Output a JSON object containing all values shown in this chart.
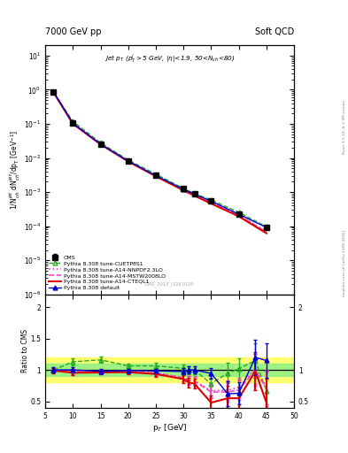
{
  "title_left": "7000 GeV pp",
  "title_right": "Soft QCD",
  "ylabel_main": "1/N$_{ch}^{jet}$ dN$_{ch}^{jet}$/dp$_T$ [GeV$^{-1}$]",
  "ylabel_ratio": "Ratio to CMS",
  "xlabel": "p$_T$ [GeV]",
  "inner_title": "Jet p$_T$ (p$_T^j$$>$5 GeV, |$\\eta$|<1.9, 50<N$_{ch}$<80)",
  "cms_label": "CMS_2013_I1261026",
  "rivet_label": "Rivet 3.1.10, ≥ 2.9M events",
  "mcplots_label": "mcplots.cern.ch [arXiv:1306.3436]",
  "pt_cms": [
    6.5,
    10,
    15,
    20,
    25,
    30,
    32,
    35,
    40,
    45
  ],
  "val_cms": [
    0.85,
    0.105,
    0.026,
    0.0082,
    0.0031,
    0.00125,
    0.0009,
    0.00057,
    0.00023,
    9e-05
  ],
  "err_cms_y": [
    0.04,
    0.006,
    0.0014,
    0.0004,
    0.00015,
    8e-05,
    6e-05,
    4e-05,
    2e-05,
    1e-05
  ],
  "pt_mc": [
    6.5,
    10,
    15,
    20,
    25,
    30,
    32,
    35,
    40,
    45
  ],
  "val_default": [
    0.84,
    0.104,
    0.0255,
    0.0081,
    0.00305,
    0.00122,
    0.00087,
    0.00054,
    0.000225,
    9.2e-05
  ],
  "val_cteql1": [
    0.84,
    0.1,
    0.025,
    0.0079,
    0.0029,
    0.00112,
    0.00078,
    0.00046,
    0.000195,
    6.2e-05
  ],
  "val_mstw": [
    0.84,
    0.102,
    0.0252,
    0.008,
    0.00295,
    0.00115,
    0.0008,
    0.00048,
    0.000205,
    6.7e-05
  ],
  "val_nnpdf": [
    0.84,
    0.103,
    0.0253,
    0.008,
    0.00298,
    0.00117,
    0.00081,
    0.00049,
    0.00021,
    7e-05
  ],
  "val_cuetp8s1": [
    0.84,
    0.118,
    0.028,
    0.0087,
    0.00335,
    0.00128,
    0.0009,
    0.00059,
    0.000255,
    9.6e-05
  ],
  "color_cms": "#000000",
  "color_default": "#0000cc",
  "color_cteql1": "#dd0000",
  "color_mstw": "#ff44bb",
  "color_nnpdf": "#cc44cc",
  "color_cuetp8s1": "#22aa22",
  "ylim_main": [
    1e-06,
    20
  ],
  "ylim_ratio": [
    0.4,
    2.2
  ],
  "xlim_main": [
    5,
    50
  ],
  "ratio_pt": [
    6.5,
    10,
    15,
    20,
    25,
    30,
    31,
    32,
    35,
    38,
    40,
    43,
    45
  ],
  "ratio_default": [
    1.0,
    1.0,
    0.98,
    0.99,
    0.985,
    0.975,
    1.0,
    1.0,
    0.945,
    0.62,
    0.63,
    1.2,
    1.15
  ],
  "ratio_err_default": [
    0.04,
    0.04,
    0.03,
    0.03,
    0.035,
    0.05,
    0.06,
    0.06,
    0.09,
    0.2,
    0.18,
    0.28,
    0.28
  ],
  "ratio_cteql1": [
    0.99,
    0.955,
    0.96,
    0.965,
    0.935,
    0.855,
    0.8,
    0.78,
    0.48,
    0.55,
    0.55,
    0.98,
    0.48
  ],
  "ratio_err_cteql1": [
    0.04,
    0.04,
    0.03,
    0.03,
    0.04,
    0.06,
    0.08,
    0.08,
    0.12,
    0.2,
    0.18,
    0.3,
    0.38
  ],
  "ratio_mstw": [
    0.995,
    0.97,
    0.97,
    0.975,
    0.95,
    0.875,
    0.83,
    0.82,
    0.65,
    0.65,
    0.68,
    1.0,
    0.7
  ],
  "ratio_err_mstw": [
    0.04,
    0.04,
    0.03,
    0.03,
    0.04,
    0.06,
    0.07,
    0.07,
    0.1,
    0.16,
    0.15,
    0.25,
    0.28
  ],
  "ratio_nnpdf": [
    0.995,
    0.975,
    0.972,
    0.975,
    0.955,
    0.88,
    0.84,
    0.83,
    0.67,
    0.68,
    0.72,
    1.02,
    0.73
  ],
  "ratio_err_nnpdf": [
    0.04,
    0.04,
    0.03,
    0.03,
    0.04,
    0.06,
    0.07,
    0.07,
    0.1,
    0.16,
    0.15,
    0.24,
    0.27
  ],
  "ratio_cuetp8s1": [
    1.0,
    1.13,
    1.16,
    1.065,
    1.065,
    1.025,
    1.0,
    1.0,
    0.78,
    0.95,
    1.02,
    1.15,
    0.67
  ],
  "ratio_err_cuetp8s1": [
    0.04,
    0.06,
    0.05,
    0.04,
    0.045,
    0.055,
    0.065,
    0.065,
    0.1,
    0.16,
    0.17,
    0.28,
    0.32
  ],
  "band_yellow": [
    0.8,
    1.2
  ],
  "band_green": [
    0.9,
    1.1
  ]
}
